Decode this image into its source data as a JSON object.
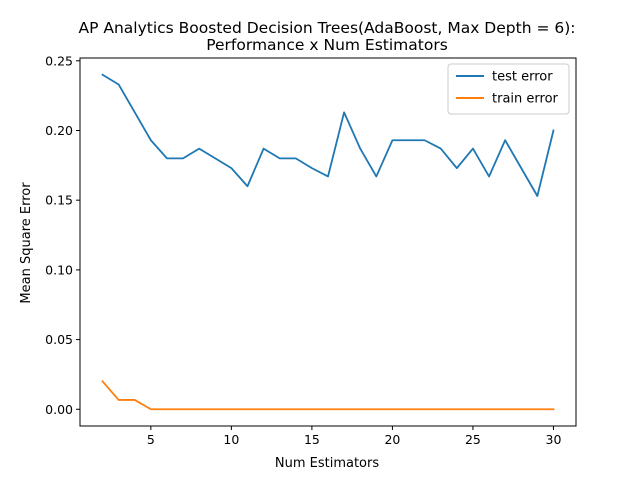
{
  "chart_data": {
    "type": "line",
    "title_line1": "AP Analytics Boosted Decision Trees(AdaBoost, Max Depth = 6):",
    "title_line2": "Performance x Num Estimators",
    "xlabel": "Num Estimators",
    "ylabel": "Mean Square Error",
    "xlim": [
      0.6,
      31.4
    ],
    "ylim": [
      -0.012,
      0.252
    ],
    "xticks": [
      5,
      10,
      15,
      20,
      25,
      30
    ],
    "yticks": [
      0.0,
      0.05,
      0.1,
      0.15,
      0.2,
      0.25
    ],
    "xtick_labels": [
      "5",
      "10",
      "15",
      "20",
      "25",
      "30"
    ],
    "ytick_labels": [
      "0.00",
      "0.05",
      "0.10",
      "0.15",
      "0.20",
      "0.25"
    ],
    "grid": false,
    "legend_position": "top-right",
    "x": [
      2,
      3,
      4,
      5,
      6,
      7,
      8,
      9,
      10,
      11,
      12,
      13,
      14,
      15,
      16,
      17,
      18,
      19,
      20,
      21,
      22,
      23,
      24,
      25,
      26,
      27,
      28,
      29,
      30
    ],
    "series": [
      {
        "name": "test error",
        "color": "#1f77b4",
        "values": [
          0.24,
          0.233,
          0.213,
          0.193,
          0.18,
          0.18,
          0.187,
          0.18,
          0.173,
          0.16,
          0.187,
          0.18,
          0.18,
          0.173,
          0.167,
          0.213,
          0.187,
          0.167,
          0.193,
          0.193,
          0.193,
          0.187,
          0.173,
          0.187,
          0.167,
          0.193,
          0.173,
          0.153,
          0.2
        ]
      },
      {
        "name": "train error",
        "color": "#ff7f0e",
        "values": [
          0.02,
          0.0067,
          0.0067,
          0.0,
          0.0,
          0.0,
          0.0,
          0.0,
          0.0,
          0.0,
          0.0,
          0.0,
          0.0,
          0.0,
          0.0,
          0.0,
          0.0,
          0.0,
          0.0,
          0.0,
          0.0,
          0.0,
          0.0,
          0.0,
          0.0,
          0.0,
          0.0,
          0.0,
          0.0
        ]
      }
    ]
  }
}
